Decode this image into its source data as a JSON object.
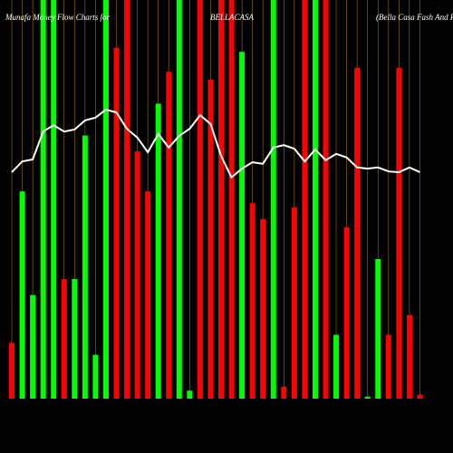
{
  "chart_data": {
    "type": "bar",
    "title": "Munafa Money Flow Charts for",
    "symbol": "BELLACASA",
    "company": "(Bella Casa Fash And Retail)",
    "ylim": [
      0,
      100
    ],
    "grid": true,
    "grid_color": "#a0700a",
    "line_color": "#ffffff",
    "series": [
      {
        "name": "money-flow",
        "colors": [
          "#ff0000",
          "#00ff00",
          "#00ff00",
          "#00ff00",
          "#00ff00",
          "#ff0000",
          "#00ff00",
          "#00ff00",
          "#00ff00",
          "#00ff00",
          "#ff0000",
          "#ff0000",
          "#ff0000",
          "#ff0000",
          "#00ff00",
          "#ff0000",
          "#00ff00",
          "#00ff00",
          "#ff0000",
          "#ff0000",
          "#ff0000",
          "#ff0000",
          "#00ff00",
          "#ff0000",
          "#ff0000",
          "#00ff00",
          "#ff0000",
          "#ff0000",
          "#ff0000",
          "#00ff00",
          "#ff0000",
          "#00ff00",
          "#ff0000",
          "#ff0000",
          "#00ff00",
          "#00ff00",
          "#ff0000",
          "#ff0000",
          "#ff0000",
          "#ff0000"
        ],
        "values": [
          14,
          52,
          26,
          100,
          100,
          30,
          30,
          66,
          11,
          100,
          88,
          100,
          62,
          52,
          74,
          82,
          100,
          2,
          100,
          80,
          100,
          100,
          87,
          49,
          45,
          100,
          3,
          48,
          100,
          100,
          100,
          16,
          43,
          83,
          0.5,
          35,
          16,
          83,
          21,
          1
        ]
      },
      {
        "name": "flow-line",
        "values": [
          56.8,
          59.5,
          60,
          67,
          68.6,
          67,
          67.5,
          69.8,
          70.5,
          72.5,
          71.8,
          67.7,
          65.5,
          61.8,
          66.4,
          63,
          65.9,
          67.7,
          71.1,
          68.9,
          60.9,
          55.5,
          57.7,
          59.3,
          58.9,
          63,
          63.6,
          62.7,
          59.5,
          62.5,
          59.8,
          61.4,
          60.5,
          58,
          57.7,
          58,
          57,
          56.8,
          58,
          56.8
        ]
      }
    ]
  }
}
